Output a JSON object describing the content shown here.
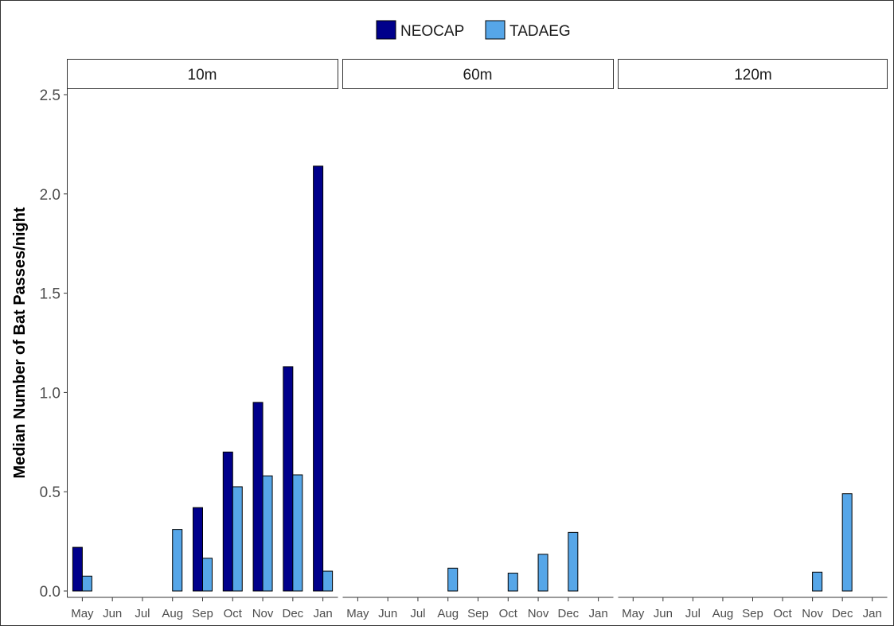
{
  "chart_data": {
    "type": "bar",
    "title": "",
    "xlabel": "",
    "ylabel": "Median Number of Bat Passes/night",
    "ylim": [
      0,
      2.5
    ],
    "yticks": [
      "0.0",
      "0.5",
      "1.0",
      "1.5",
      "2.0",
      "2.5"
    ],
    "grid": false,
    "legend_position": "top",
    "categories": [
      "May",
      "Jun",
      "Jul",
      "Aug",
      "Sep",
      "Oct",
      "Nov",
      "Dec",
      "Jan"
    ],
    "legend": [
      {
        "name": "NEOCAP",
        "color": "#00008b"
      },
      {
        "name": "TADAEG",
        "color": "#56a6e8"
      }
    ],
    "panels": [
      {
        "label": "10m",
        "series": [
          {
            "name": "NEOCAP",
            "values": [
              0.22,
              0,
              0,
              0,
              0.42,
              0.7,
              0.95,
              1.13,
              2.14
            ]
          },
          {
            "name": "TADAEG",
            "values": [
              0.075,
              0,
              0,
              0.31,
              0.165,
              0.525,
              0.58,
              0.585,
              0.1
            ]
          }
        ]
      },
      {
        "label": "60m",
        "series": [
          {
            "name": "NEOCAP",
            "values": [
              0,
              0,
              0,
              0,
              0,
              0,
              0,
              0,
              0
            ]
          },
          {
            "name": "TADAEG",
            "values": [
              0,
              0,
              0,
              0.115,
              0,
              0.09,
              0.185,
              0.295,
              0
            ]
          }
        ]
      },
      {
        "label": "120m",
        "series": [
          {
            "name": "NEOCAP",
            "values": [
              0,
              0,
              0,
              0,
              0,
              0,
              0,
              0,
              0
            ]
          },
          {
            "name": "TADAEG",
            "values": [
              0,
              0,
              0,
              0,
              0,
              0,
              0.095,
              0.49,
              0
            ]
          }
        ]
      }
    ]
  }
}
